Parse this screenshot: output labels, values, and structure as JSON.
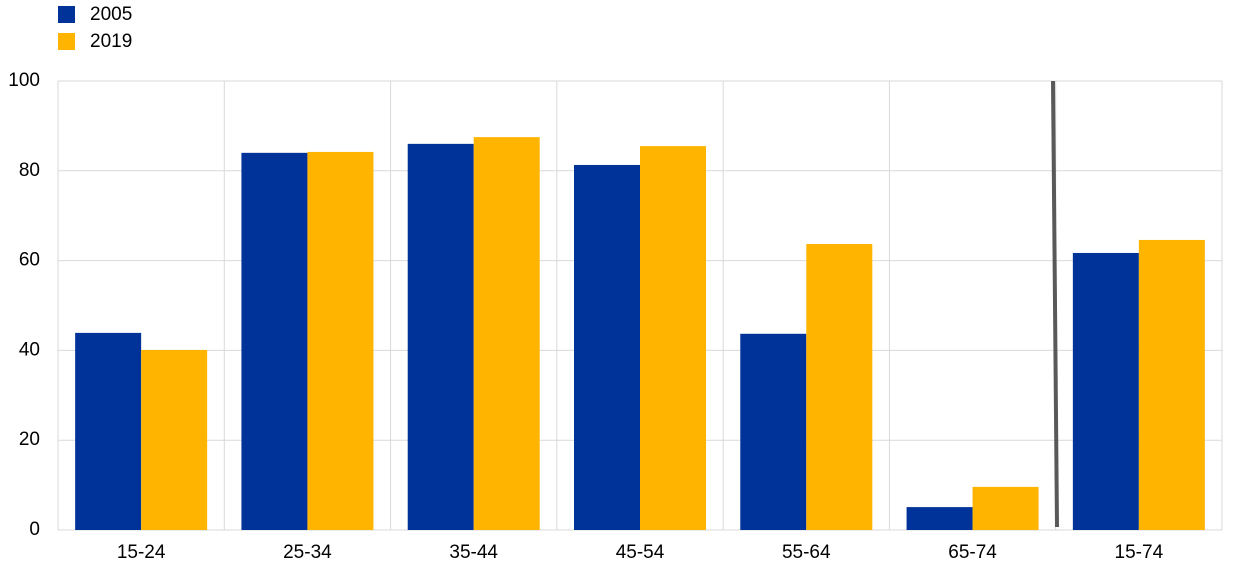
{
  "chart_data": {
    "type": "bar",
    "categories": [
      "15-24",
      "25-34",
      "35-44",
      "45-54",
      "55-64",
      "65-74",
      "15-74"
    ],
    "series": [
      {
        "name": "2005",
        "color": "#003399",
        "values": [
          43.9,
          84.0,
          86.0,
          81.3,
          43.7,
          5.1,
          61.7
        ]
      },
      {
        "name": "2019",
        "color": "#ffb400",
        "values": [
          40.1,
          84.2,
          87.5,
          85.5,
          63.7,
          9.6,
          64.6
        ]
      }
    ],
    "ylim": [
      0,
      100
    ],
    "yticks": [
      0,
      20,
      40,
      60,
      80,
      100
    ],
    "grid": true,
    "legend": "top-left"
  }
}
